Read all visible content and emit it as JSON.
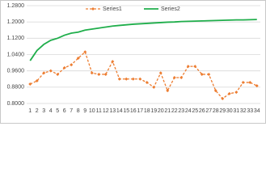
{
  "chart_data": {
    "type": "line",
    "categories": [
      "1",
      "2",
      "3",
      "4",
      "5",
      "6",
      "7",
      "8",
      "9",
      "10",
      "11",
      "12",
      "13",
      "14",
      "15",
      "16",
      "17",
      "18",
      "19",
      "20",
      "21",
      "22",
      "23",
      "24",
      "25",
      "26",
      "27",
      "28",
      "29",
      "30",
      "31",
      "32",
      "33",
      "34"
    ],
    "series": [
      {
        "name": "Series1",
        "color": "#ED7D31",
        "dashed": true,
        "marker": "diamond",
        "values": [
          0.895,
          0.911,
          0.95,
          0.96,
          0.943,
          0.975,
          0.99,
          1.022,
          1.053,
          0.95,
          0.943,
          0.943,
          1.006,
          0.92,
          0.92,
          0.92,
          0.92,
          0.903,
          0.88,
          0.95,
          0.863,
          0.927,
          0.927,
          0.982,
          0.982,
          0.943,
          0.943,
          0.863,
          0.824,
          0.848,
          0.855,
          0.903,
          0.903,
          0.887
        ]
      },
      {
        "name": "Series2",
        "color": "#1FAE4B",
        "dashed": false,
        "values": [
          1.01,
          1.06,
          1.09,
          1.11,
          1.12,
          1.135,
          1.145,
          1.15,
          1.16,
          1.165,
          1.17,
          1.175,
          1.18,
          1.183,
          1.186,
          1.189,
          1.191,
          1.193,
          1.195,
          1.197,
          1.199,
          1.2,
          1.202,
          1.203,
          1.204,
          1.205,
          1.206,
          1.207,
          1.208,
          1.209,
          1.21,
          1.21,
          1.211,
          1.212
        ]
      }
    ],
    "ylim": [
      0.8,
      1.28
    ],
    "yticks": [
      {
        "value": 0.8,
        "label": "0.8000"
      },
      {
        "value": 0.88,
        "label": "0.8800"
      },
      {
        "value": 0.96,
        "label": "0.9600"
      },
      {
        "value": 1.04,
        "label": "1.0400"
      },
      {
        "value": 1.12,
        "label": "1.1200"
      },
      {
        "value": 1.2,
        "label": "1.2000"
      },
      {
        "value": 1.28,
        "label": "1.2800"
      }
    ],
    "grid": true
  }
}
